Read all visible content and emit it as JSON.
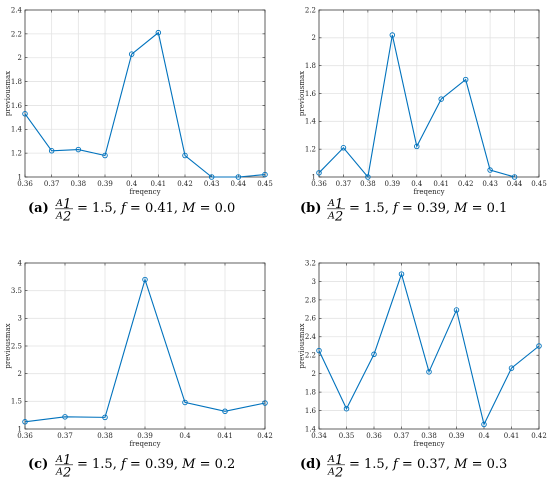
{
  "chart_data": [
    {
      "type": "line",
      "panel_letter": "(a)",
      "caption": {
        "A_sub": "1",
        "B_sub": "2",
        "ratio": "1.5",
        "f": "0.41",
        "M": "0.0"
      },
      "xlabel": "freqency",
      "ylabel": "previousmax",
      "xlim": [
        0.36,
        0.45
      ],
      "ylim": [
        1,
        2.4
      ],
      "xticks": [
        "0.36",
        "0.37",
        "0.38",
        "0.39",
        "0.4",
        "0.41",
        "0.42",
        "0.43",
        "0.44",
        "0.45"
      ],
      "yticks": [
        "1",
        "1.2",
        "1.4",
        "1.6",
        "1.8",
        "2",
        "2.2",
        "2.4"
      ],
      "grid": true,
      "x": [
        0.36,
        0.37,
        0.38,
        0.39,
        0.4,
        0.41,
        0.42,
        0.43,
        0.44,
        0.45
      ],
      "y": [
        1.53,
        1.22,
        1.23,
        1.18,
        2.03,
        2.21,
        1.18,
        1.0,
        1.0,
        1.02
      ]
    },
    {
      "type": "line",
      "panel_letter": "(b)",
      "caption": {
        "A_sub": "1",
        "B_sub": "2",
        "ratio": "1.5",
        "f": "0.39",
        "M": "0.1"
      },
      "xlabel": "freqency",
      "ylabel": "previousmax",
      "xlim": [
        0.36,
        0.45
      ],
      "ylim": [
        1,
        2.2
      ],
      "xticks": [
        "0.36",
        "0.37",
        "0.38",
        "0.39",
        "0.4",
        "0.41",
        "0.42",
        "0.43",
        "0.44",
        "0.45"
      ],
      "yticks": [
        "1",
        "1.2",
        "1.4",
        "1.6",
        "1.8",
        "2",
        "2.2"
      ],
      "grid": true,
      "x": [
        0.36,
        0.37,
        0.38,
        0.39,
        0.4,
        0.41,
        0.42,
        0.43,
        0.44
      ],
      "y": [
        1.03,
        1.21,
        1.0,
        2.02,
        1.22,
        1.56,
        1.7,
        1.05,
        1.0
      ]
    },
    {
      "type": "line",
      "panel_letter": "(c)",
      "caption": {
        "A_sub": "1",
        "B_sub": "2",
        "ratio": "1.5",
        "f": "0.39",
        "M": "0.2"
      },
      "xlabel": "freqency",
      "ylabel": "previousmax",
      "xlim": [
        0.36,
        0.42
      ],
      "ylim": [
        1,
        4
      ],
      "xticks": [
        "0.36",
        "0.37",
        "0.38",
        "0.39",
        "0.4",
        "0.41",
        "0.42"
      ],
      "yticks": [
        "1",
        "1.5",
        "2",
        "2.5",
        "3",
        "3.5",
        "4"
      ],
      "grid": true,
      "x": [
        0.36,
        0.37,
        0.38,
        0.39,
        0.4,
        0.41,
        0.42
      ],
      "y": [
        1.13,
        1.22,
        1.21,
        3.7,
        1.48,
        1.32,
        1.47
      ]
    },
    {
      "type": "line",
      "panel_letter": "(d)",
      "caption": {
        "A_sub": "1",
        "B_sub": "2",
        "ratio": "1.5",
        "f": "0.37",
        "M": "0.3"
      },
      "xlabel": "freqency",
      "ylabel": "previousmax",
      "xlim": [
        0.34,
        0.42
      ],
      "ylim": [
        1.4,
        3.2
      ],
      "xticks": [
        "0.34",
        "0.35",
        "0.36",
        "0.37",
        "0.38",
        "0.39",
        "0.4",
        "0.41",
        "0.42"
      ],
      "yticks": [
        "1.4",
        "1.6",
        "1.8",
        "2",
        "2.2",
        "2.4",
        "2.6",
        "2.8",
        "3",
        "3.2"
      ],
      "grid": true,
      "x": [
        0.34,
        0.35,
        0.36,
        0.37,
        0.38,
        0.39,
        0.4,
        0.41,
        0.42
      ],
      "y": [
        2.25,
        1.62,
        2.21,
        3.08,
        2.02,
        2.69,
        1.45,
        2.06,
        2.3
      ]
    }
  ],
  "colors": {
    "line": "#0072bd",
    "grid": "#e3e3e3",
    "axis": "#262626"
  }
}
